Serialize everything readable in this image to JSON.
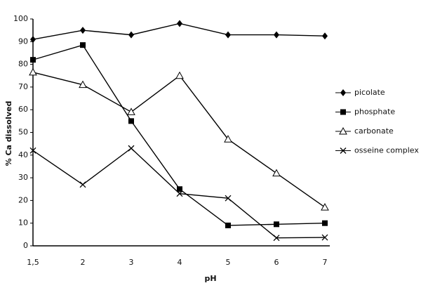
{
  "chart_data": {
    "type": "line",
    "x_label": "pH",
    "y_label": "% Ca dissolved",
    "categories": [
      "1,5",
      "2",
      "3",
      "4",
      "5",
      "6",
      "7"
    ],
    "ylim": [
      0,
      100
    ],
    "yticks": [
      0,
      10,
      20,
      30,
      40,
      50,
      60,
      70,
      80,
      90,
      100
    ],
    "legend": "right",
    "series": [
      {
        "name": "picolate",
        "color": "#000000",
        "marker": "diamond",
        "values": [
          91,
          95,
          93,
          98,
          93,
          93,
          92.5
        ]
      },
      {
        "name": "phosphate",
        "color": "#000000",
        "marker": "square",
        "values": [
          82,
          88.5,
          55,
          25,
          9,
          9.5,
          10
        ]
      },
      {
        "name": "carbonate",
        "color": "#000000",
        "marker": "triangle",
        "values": [
          76.5,
          71,
          59,
          75,
          47,
          32,
          17
        ]
      },
      {
        "name": "osseine complex",
        "color": "#000000",
        "marker": "x",
        "values": [
          42,
          27,
          43,
          23,
          21,
          3.5,
          3.7
        ]
      }
    ]
  }
}
